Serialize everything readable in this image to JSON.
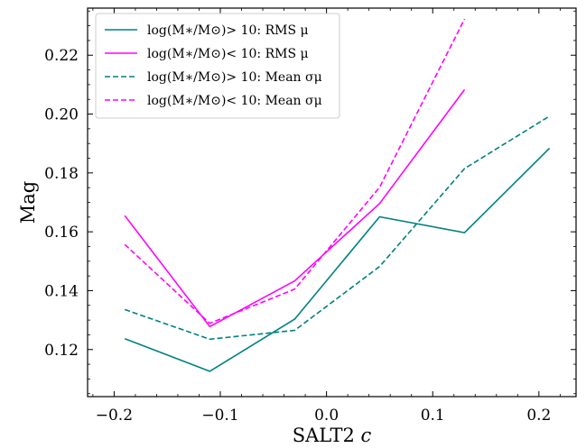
{
  "chart_data": {
    "type": "line",
    "xlabel": "SALT2 c",
    "ylabel": "Mag",
    "xlim": [
      -0.225,
      0.235
    ],
    "ylim": [
      0.104,
      0.236
    ],
    "x_ticks": [
      -0.2,
      -0.1,
      0.0,
      0.1,
      0.2
    ],
    "x_tick_labels": [
      "−0.2",
      "−0.1",
      "0.0",
      "0.1",
      "0.2"
    ],
    "y_ticks": [
      0.12,
      0.14,
      0.16,
      0.18,
      0.2,
      0.22
    ],
    "y_tick_labels": [
      "0.12",
      "0.14",
      "0.16",
      "0.18",
      "0.20",
      "0.22"
    ],
    "grid": false,
    "legend_position": "upper-left",
    "series": [
      {
        "name": "log(M∗/M⊙)> 10: RMS μ",
        "color": "#008080",
        "dash": "solid",
        "x": [
          -0.19,
          -0.11,
          -0.03,
          0.05,
          0.13,
          0.21
        ],
        "y": [
          0.1237,
          0.1126,
          0.1303,
          0.1651,
          0.1597,
          0.1884
        ]
      },
      {
        "name": "log(M∗/M⊙)< 10: RMS μ",
        "color": "#ff00ff",
        "dash": "solid",
        "x": [
          -0.19,
          -0.11,
          -0.03,
          0.05,
          0.13
        ],
        "y": [
          0.1655,
          0.1278,
          0.1433,
          0.1696,
          0.2083
        ]
      },
      {
        "name": "log(M∗/M⊙)> 10: Mean σμ",
        "color": "#008080",
        "dash": "dashed",
        "x": [
          -0.19,
          -0.11,
          -0.03,
          0.05,
          0.13,
          0.21
        ],
        "y": [
          0.1336,
          0.1235,
          0.1265,
          0.1482,
          0.1815,
          0.1993
        ]
      },
      {
        "name": "log(M∗/M⊙)< 10: Mean σμ",
        "color": "#ff00ff",
        "dash": "dashed",
        "x": [
          -0.19,
          -0.11,
          -0.03,
          0.05,
          0.13
        ],
        "y": [
          0.1557,
          0.1289,
          0.1405,
          0.1751,
          0.2323
        ]
      }
    ]
  }
}
